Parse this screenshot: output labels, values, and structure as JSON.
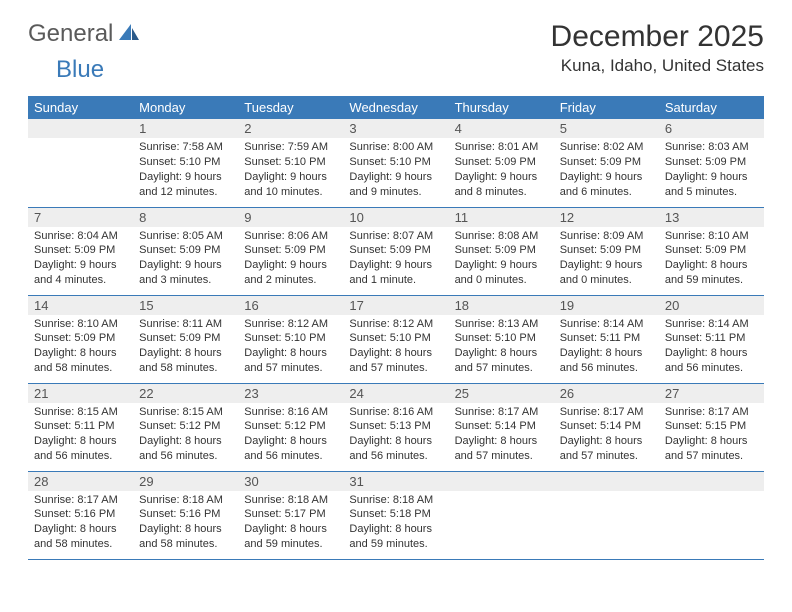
{
  "logo": {
    "text1": "General",
    "text2": "Blue"
  },
  "title": "December 2025",
  "location": "Kuna, Idaho, United States",
  "colors": {
    "header_bg": "#3a7ab8",
    "header_text": "#ffffff",
    "day_number_bg": "#eeeeee",
    "border": "#3a7ab8",
    "logo_blue": "#3a7ab8",
    "logo_gray": "#5a5a5a"
  },
  "day_headers": [
    "Sunday",
    "Monday",
    "Tuesday",
    "Wednesday",
    "Thursday",
    "Friday",
    "Saturday"
  ],
  "weeks": [
    [
      {
        "day": "",
        "sunrise": "",
        "sunset": "",
        "daylight": ""
      },
      {
        "day": "1",
        "sunrise": "Sunrise: 7:58 AM",
        "sunset": "Sunset: 5:10 PM",
        "daylight": "Daylight: 9 hours and 12 minutes."
      },
      {
        "day": "2",
        "sunrise": "Sunrise: 7:59 AM",
        "sunset": "Sunset: 5:10 PM",
        "daylight": "Daylight: 9 hours and 10 minutes."
      },
      {
        "day": "3",
        "sunrise": "Sunrise: 8:00 AM",
        "sunset": "Sunset: 5:10 PM",
        "daylight": "Daylight: 9 hours and 9 minutes."
      },
      {
        "day": "4",
        "sunrise": "Sunrise: 8:01 AM",
        "sunset": "Sunset: 5:09 PM",
        "daylight": "Daylight: 9 hours and 8 minutes."
      },
      {
        "day": "5",
        "sunrise": "Sunrise: 8:02 AM",
        "sunset": "Sunset: 5:09 PM",
        "daylight": "Daylight: 9 hours and 6 minutes."
      },
      {
        "day": "6",
        "sunrise": "Sunrise: 8:03 AM",
        "sunset": "Sunset: 5:09 PM",
        "daylight": "Daylight: 9 hours and 5 minutes."
      }
    ],
    [
      {
        "day": "7",
        "sunrise": "Sunrise: 8:04 AM",
        "sunset": "Sunset: 5:09 PM",
        "daylight": "Daylight: 9 hours and 4 minutes."
      },
      {
        "day": "8",
        "sunrise": "Sunrise: 8:05 AM",
        "sunset": "Sunset: 5:09 PM",
        "daylight": "Daylight: 9 hours and 3 minutes."
      },
      {
        "day": "9",
        "sunrise": "Sunrise: 8:06 AM",
        "sunset": "Sunset: 5:09 PM",
        "daylight": "Daylight: 9 hours and 2 minutes."
      },
      {
        "day": "10",
        "sunrise": "Sunrise: 8:07 AM",
        "sunset": "Sunset: 5:09 PM",
        "daylight": "Daylight: 9 hours and 1 minute."
      },
      {
        "day": "11",
        "sunrise": "Sunrise: 8:08 AM",
        "sunset": "Sunset: 5:09 PM",
        "daylight": "Daylight: 9 hours and 0 minutes."
      },
      {
        "day": "12",
        "sunrise": "Sunrise: 8:09 AM",
        "sunset": "Sunset: 5:09 PM",
        "daylight": "Daylight: 9 hours and 0 minutes."
      },
      {
        "day": "13",
        "sunrise": "Sunrise: 8:10 AM",
        "sunset": "Sunset: 5:09 PM",
        "daylight": "Daylight: 8 hours and 59 minutes."
      }
    ],
    [
      {
        "day": "14",
        "sunrise": "Sunrise: 8:10 AM",
        "sunset": "Sunset: 5:09 PM",
        "daylight": "Daylight: 8 hours and 58 minutes."
      },
      {
        "day": "15",
        "sunrise": "Sunrise: 8:11 AM",
        "sunset": "Sunset: 5:09 PM",
        "daylight": "Daylight: 8 hours and 58 minutes."
      },
      {
        "day": "16",
        "sunrise": "Sunrise: 8:12 AM",
        "sunset": "Sunset: 5:10 PM",
        "daylight": "Daylight: 8 hours and 57 minutes."
      },
      {
        "day": "17",
        "sunrise": "Sunrise: 8:12 AM",
        "sunset": "Sunset: 5:10 PM",
        "daylight": "Daylight: 8 hours and 57 minutes."
      },
      {
        "day": "18",
        "sunrise": "Sunrise: 8:13 AM",
        "sunset": "Sunset: 5:10 PM",
        "daylight": "Daylight: 8 hours and 57 minutes."
      },
      {
        "day": "19",
        "sunrise": "Sunrise: 8:14 AM",
        "sunset": "Sunset: 5:11 PM",
        "daylight": "Daylight: 8 hours and 56 minutes."
      },
      {
        "day": "20",
        "sunrise": "Sunrise: 8:14 AM",
        "sunset": "Sunset: 5:11 PM",
        "daylight": "Daylight: 8 hours and 56 minutes."
      }
    ],
    [
      {
        "day": "21",
        "sunrise": "Sunrise: 8:15 AM",
        "sunset": "Sunset: 5:11 PM",
        "daylight": "Daylight: 8 hours and 56 minutes."
      },
      {
        "day": "22",
        "sunrise": "Sunrise: 8:15 AM",
        "sunset": "Sunset: 5:12 PM",
        "daylight": "Daylight: 8 hours and 56 minutes."
      },
      {
        "day": "23",
        "sunrise": "Sunrise: 8:16 AM",
        "sunset": "Sunset: 5:12 PM",
        "daylight": "Daylight: 8 hours and 56 minutes."
      },
      {
        "day": "24",
        "sunrise": "Sunrise: 8:16 AM",
        "sunset": "Sunset: 5:13 PM",
        "daylight": "Daylight: 8 hours and 56 minutes."
      },
      {
        "day": "25",
        "sunrise": "Sunrise: 8:17 AM",
        "sunset": "Sunset: 5:14 PM",
        "daylight": "Daylight: 8 hours and 57 minutes."
      },
      {
        "day": "26",
        "sunrise": "Sunrise: 8:17 AM",
        "sunset": "Sunset: 5:14 PM",
        "daylight": "Daylight: 8 hours and 57 minutes."
      },
      {
        "day": "27",
        "sunrise": "Sunrise: 8:17 AM",
        "sunset": "Sunset: 5:15 PM",
        "daylight": "Daylight: 8 hours and 57 minutes."
      }
    ],
    [
      {
        "day": "28",
        "sunrise": "Sunrise: 8:17 AM",
        "sunset": "Sunset: 5:16 PM",
        "daylight": "Daylight: 8 hours and 58 minutes."
      },
      {
        "day": "29",
        "sunrise": "Sunrise: 8:18 AM",
        "sunset": "Sunset: 5:16 PM",
        "daylight": "Daylight: 8 hours and 58 minutes."
      },
      {
        "day": "30",
        "sunrise": "Sunrise: 8:18 AM",
        "sunset": "Sunset: 5:17 PM",
        "daylight": "Daylight: 8 hours and 59 minutes."
      },
      {
        "day": "31",
        "sunrise": "Sunrise: 8:18 AM",
        "sunset": "Sunset: 5:18 PM",
        "daylight": "Daylight: 8 hours and 59 minutes."
      },
      {
        "day": "",
        "sunrise": "",
        "sunset": "",
        "daylight": ""
      },
      {
        "day": "",
        "sunrise": "",
        "sunset": "",
        "daylight": ""
      },
      {
        "day": "",
        "sunrise": "",
        "sunset": "",
        "daylight": ""
      }
    ]
  ]
}
